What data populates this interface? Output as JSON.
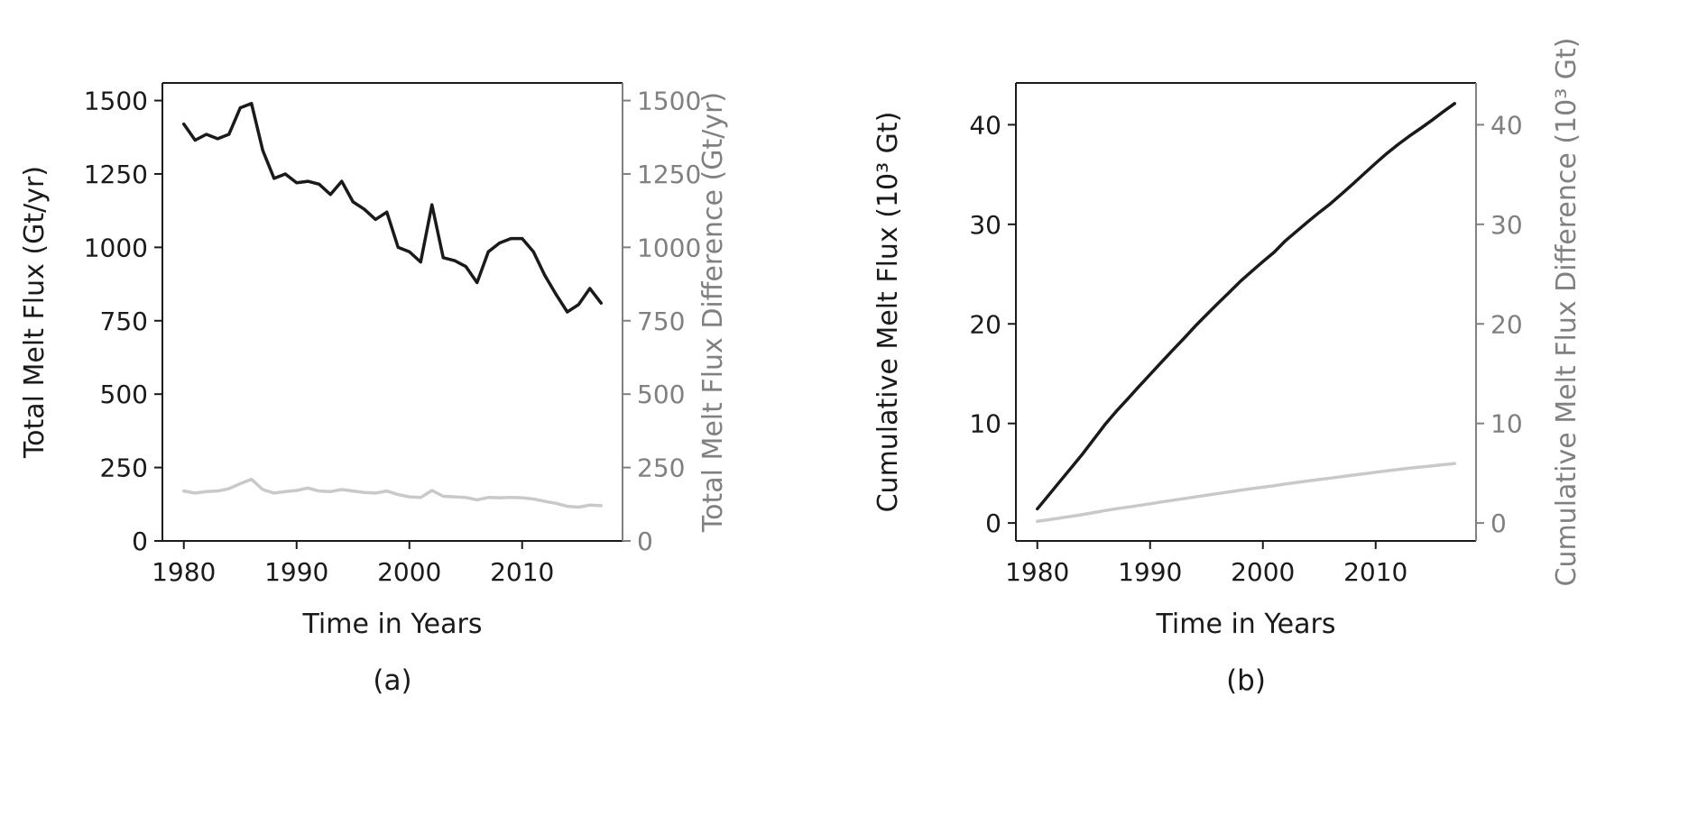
{
  "figure": {
    "background": "#ffffff",
    "panel_count": 2
  },
  "chart_data": [
    {
      "type": "line",
      "caption": "(a)",
      "title": "",
      "xlabel": "Time in Years",
      "ylabel_left": "Total Melt Flux (Gt/yr)",
      "ylabel_right": "Total Melt Flux Difference (Gt/yr)",
      "xlim": [
        1978.1,
        2018.9
      ],
      "ylim": [
        0,
        1560
      ],
      "x_ticks": [
        1980,
        1990,
        2000,
        2010
      ],
      "y_ticks": [
        0,
        250,
        500,
        750,
        1000,
        1250,
        1500
      ],
      "grid": false,
      "legend": "none",
      "colors": {
        "primary": "#1a1a1a",
        "secondary": "#c9c9c9",
        "right_axis_text": "#808080",
        "spine": "#1a1a1a"
      },
      "x": [
        1980,
        1981,
        1982,
        1983,
        1984,
        1985,
        1986,
        1987,
        1988,
        1989,
        1990,
        1991,
        1992,
        1993,
        1994,
        1995,
        1996,
        1997,
        1998,
        1999,
        2000,
        2001,
        2002,
        2003,
        2004,
        2005,
        2006,
        2007,
        2008,
        2009,
        2010,
        2011,
        2012,
        2013,
        2014,
        2015,
        2016,
        2017
      ],
      "series": [
        {
          "name": "Total Melt Flux",
          "axis": "left",
          "color": "#1a1a1a",
          "values": [
            1420,
            1365,
            1385,
            1370,
            1385,
            1475,
            1490,
            1330,
            1235,
            1250,
            1220,
            1225,
            1215,
            1180,
            1225,
            1155,
            1130,
            1095,
            1120,
            1000,
            985,
            950,
            1145,
            965,
            955,
            935,
            880,
            985,
            1015,
            1030,
            1030,
            985,
            905,
            840,
            780,
            805,
            860,
            810
          ]
        },
        {
          "name": "Total Melt Flux Difference",
          "axis": "right",
          "color": "#c9c9c9",
          "values": [
            170,
            163,
            168,
            170,
            178,
            195,
            210,
            175,
            163,
            168,
            172,
            180,
            170,
            168,
            175,
            170,
            165,
            163,
            170,
            158,
            150,
            148,
            172,
            152,
            150,
            148,
            140,
            148,
            147,
            148,
            147,
            143,
            135,
            128,
            118,
            115,
            122,
            120
          ]
        }
      ]
    },
    {
      "type": "line",
      "caption": "(b)",
      "title": "",
      "xlabel": "Time in Years",
      "ylabel_left": "Cumulative Melt Flux (10³ Gt)",
      "ylabel_right": "Cumulative Melt Flux Difference (10³ Gt)",
      "xlim": [
        1978.1,
        2018.9
      ],
      "ylim": [
        -1.8,
        44.2
      ],
      "x_ticks": [
        1980,
        1990,
        2000,
        2010
      ],
      "y_ticks": [
        0,
        10,
        20,
        30,
        40
      ],
      "grid": false,
      "legend": "none",
      "colors": {
        "primary": "#1a1a1a",
        "secondary": "#c9c9c9",
        "right_axis_text": "#808080",
        "spine": "#1a1a1a"
      },
      "x": [
        1980,
        1981,
        1982,
        1983,
        1984,
        1985,
        1986,
        1987,
        1988,
        1989,
        1990,
        1991,
        1992,
        1993,
        1994,
        1995,
        1996,
        1997,
        1998,
        1999,
        2000,
        2001,
        2002,
        2003,
        2004,
        2005,
        2006,
        2007,
        2008,
        2009,
        2010,
        2011,
        2012,
        2013,
        2014,
        2015,
        2016,
        2017
      ],
      "series": [
        {
          "name": "Cumulative Melt Flux",
          "axis": "left",
          "color": "#1a1a1a",
          "values": [
            1.42,
            2.79,
            4.17,
            5.54,
            6.92,
            8.4,
            9.89,
            11.22,
            12.45,
            13.7,
            14.92,
            16.15,
            17.36,
            18.54,
            19.77,
            20.92,
            22.05,
            23.15,
            24.27,
            25.27,
            26.25,
            27.2,
            28.35,
            29.31,
            30.27,
            31.2,
            32.08,
            33.07,
            34.08,
            35.11,
            36.14,
            37.13,
            38.03,
            38.87,
            39.65,
            40.46,
            41.32,
            42.13
          ]
        },
        {
          "name": "Cumulative Melt Flux Difference",
          "axis": "right",
          "color": "#c9c9c9",
          "values": [
            0.17,
            0.33,
            0.5,
            0.67,
            0.85,
            1.04,
            1.25,
            1.43,
            1.59,
            1.76,
            1.93,
            2.11,
            2.28,
            2.45,
            2.62,
            2.79,
            2.96,
            3.12,
            3.29,
            3.45,
            3.6,
            3.75,
            3.92,
            4.07,
            4.22,
            4.37,
            4.51,
            4.66,
            4.81,
            4.95,
            5.1,
            5.24,
            5.38,
            5.51,
            5.63,
            5.74,
            5.86,
            5.98
          ]
        }
      ]
    }
  ]
}
